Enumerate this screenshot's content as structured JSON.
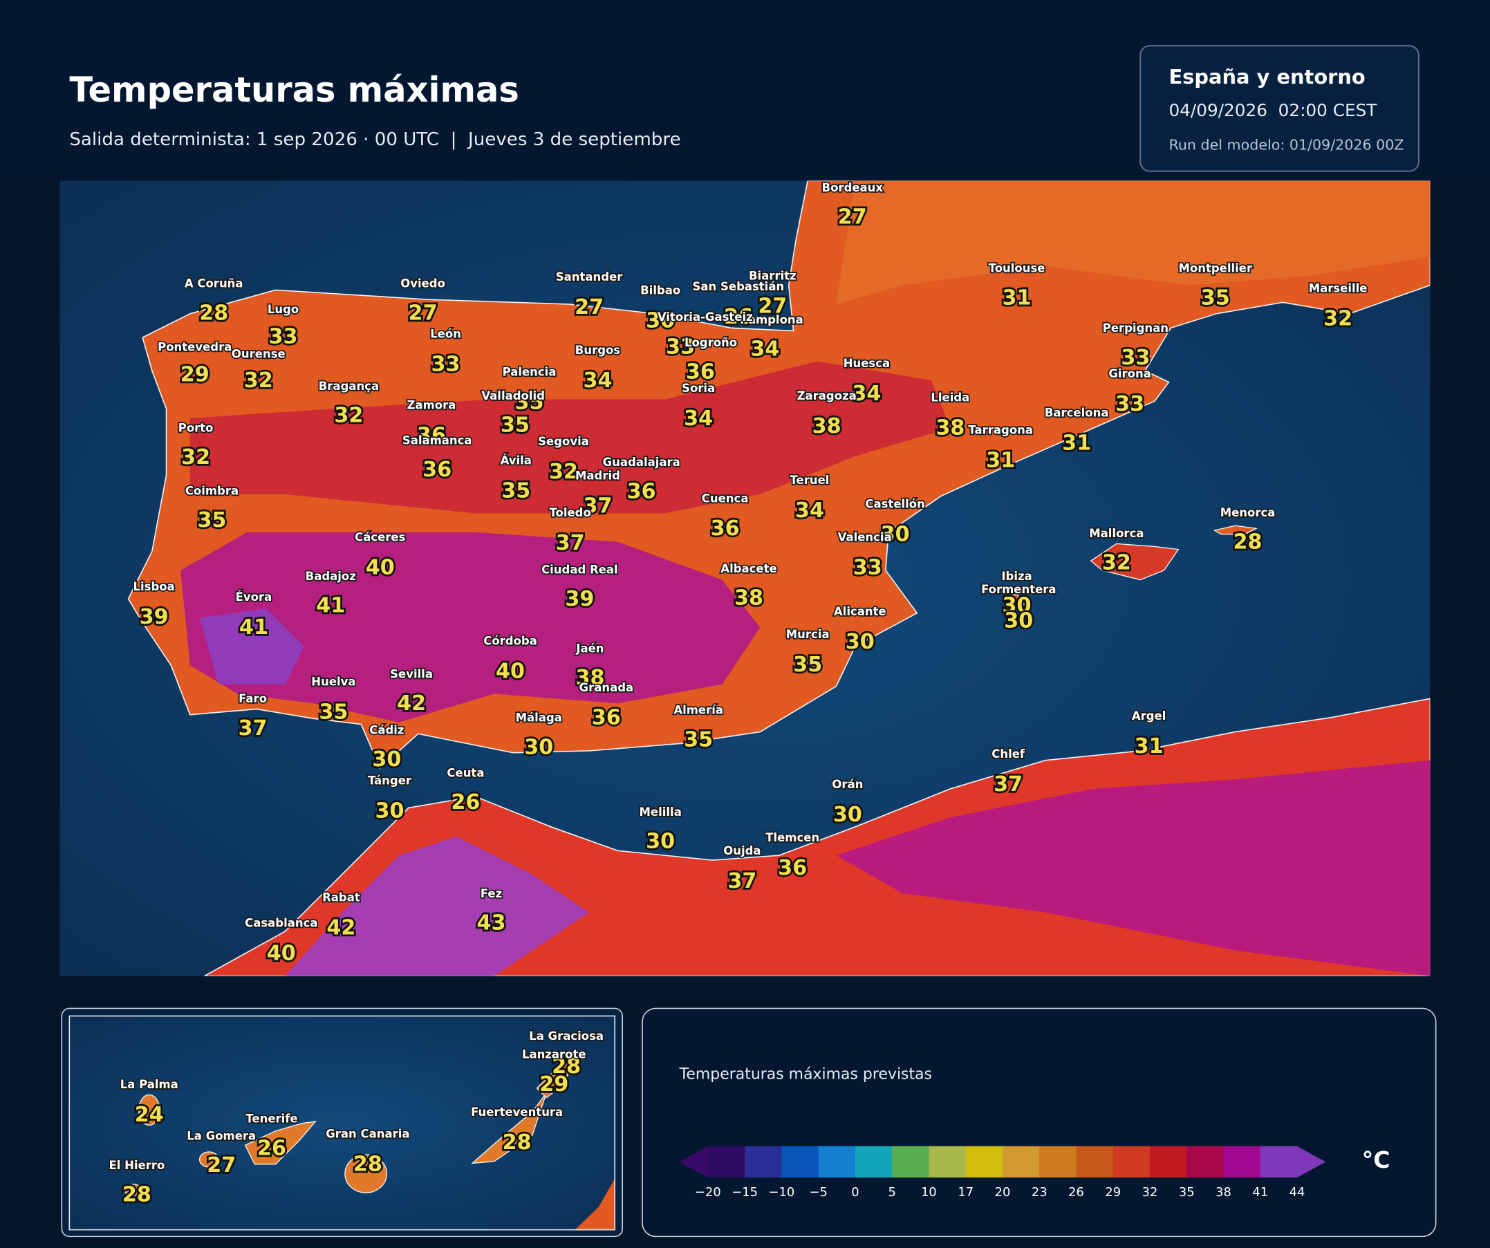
{
  "header": {
    "title": "Temperaturas máximas",
    "subtitle": "Salida determinista: 1 sep 2026 · 00 UTC  |  Jueves 3 de septiembre"
  },
  "info_box": {
    "region": "España y entorno",
    "valid_time": "04/09/2026  02:00 CEST",
    "model_run": "Run del modelo: 01/09/2026 00Z"
  },
  "map": {
    "cities": [
      {
        "name": "A Coruña",
        "value": 28
      },
      {
        "name": "Lugo",
        "value": 33
      },
      {
        "name": "Oviedo",
        "value": 27
      },
      {
        "name": "Santander",
        "value": 27
      },
      {
        "name": "Bilbao",
        "value": 30
      },
      {
        "name": "San Sebastián",
        "value": 26
      },
      {
        "name": "Biarritz",
        "value": 27
      },
      {
        "name": "Bordeaux",
        "value": 27
      },
      {
        "name": "Toulouse",
        "value": 31
      },
      {
        "name": "Montpellier",
        "value": 35
      },
      {
        "name": "Marseille",
        "value": 32
      },
      {
        "name": "Perpignan",
        "value": 33
      },
      {
        "name": "Girona",
        "value": 33
      },
      {
        "name": "Barcelona",
        "value": 31
      },
      {
        "name": "Tarragona",
        "value": 31
      },
      {
        "name": "Lleida",
        "value": 38
      },
      {
        "name": "Huesca",
        "value": 34
      },
      {
        "name": "Zaragoza",
        "value": 38
      },
      {
        "name": "Pamplona",
        "value": 34
      },
      {
        "name": "Vitoria-Gasteiz",
        "value": 33
      },
      {
        "name": "Logroño",
        "value": 36
      },
      {
        "name": "Soria",
        "value": 34
      },
      {
        "name": "Burgos",
        "value": 34
      },
      {
        "name": "Palencia",
        "value": 35
      },
      {
        "name": "León",
        "value": 33
      },
      {
        "name": "Ourense",
        "value": 32
      },
      {
        "name": "Pontevedra",
        "value": 29
      },
      {
        "name": "Bragança",
        "value": 32
      },
      {
        "name": "Zamora",
        "value": 36
      },
      {
        "name": "Valladolid",
        "value": 35
      },
      {
        "name": "Salamanca",
        "value": 36
      },
      {
        "name": "Segovia",
        "value": 32
      },
      {
        "name": "Ávila",
        "value": 35
      },
      {
        "name": "Guadalajara",
        "value": 36
      },
      {
        "name": "Madrid",
        "value": 37
      },
      {
        "name": "Porto",
        "value": 32
      },
      {
        "name": "Coimbra",
        "value": 35
      },
      {
        "name": "Toledo",
        "value": 37
      },
      {
        "name": "Cuenca",
        "value": 36
      },
      {
        "name": "Teruel",
        "value": 34
      },
      {
        "name": "Castellón",
        "value": 30
      },
      {
        "name": "Valencia",
        "value": 33
      },
      {
        "name": "Cáceres",
        "value": 40
      },
      {
        "name": "Badajoz",
        "value": 41
      },
      {
        "name": "Lisboa",
        "value": 39
      },
      {
        "name": "Évora",
        "value": 41
      },
      {
        "name": "Ciudad Real",
        "value": 39
      },
      {
        "name": "Albacete",
        "value": 38
      },
      {
        "name": "Ibiza",
        "value": 30
      },
      {
        "name": "Formentera",
        "value": 30
      },
      {
        "name": "Mallorca",
        "value": 32
      },
      {
        "name": "Menorca",
        "value": 28
      },
      {
        "name": "Alicante",
        "value": 30
      },
      {
        "name": "Murcia",
        "value": 35
      },
      {
        "name": "Córdoba",
        "value": 40
      },
      {
        "name": "Jaén",
        "value": 38
      },
      {
        "name": "Granada",
        "value": 36
      },
      {
        "name": "Sevilla",
        "value": 42
      },
      {
        "name": "Huelva",
        "value": 35
      },
      {
        "name": "Faro",
        "value": 37
      },
      {
        "name": "Cádiz",
        "value": 30
      },
      {
        "name": "Málaga",
        "value": 30
      },
      {
        "name": "Almería",
        "value": 35
      },
      {
        "name": "Tánger",
        "value": 30
      },
      {
        "name": "Ceuta",
        "value": 26
      },
      {
        "name": "Melilla",
        "value": 30
      },
      {
        "name": "Orán",
        "value": 30
      },
      {
        "name": "Chlef",
        "value": 37
      },
      {
        "name": "Argel",
        "value": 31
      },
      {
        "name": "Tlemcen",
        "value": 36
      },
      {
        "name": "Oujda",
        "value": 37
      },
      {
        "name": "Rabat",
        "value": 42
      },
      {
        "name": "Casablanca",
        "value": 40
      },
      {
        "name": "Fez",
        "value": 43
      }
    ]
  },
  "inset": {
    "islands": [
      {
        "name": "La Graciosa",
        "value": 28
      },
      {
        "name": "Lanzarote",
        "value": 29
      },
      {
        "name": "La Palma",
        "value": 24
      },
      {
        "name": "Tenerife",
        "value": 26
      },
      {
        "name": "La Gomera",
        "value": 27
      },
      {
        "name": "Gran Canaria",
        "value": 28
      },
      {
        "name": "Fuerteventura",
        "value": 28
      },
      {
        "name": "El Hierro",
        "value": 28
      }
    ]
  },
  "legend": {
    "title": "Temperaturas máximas previstas",
    "unit": "°C",
    "ticks": [
      "−20",
      "−15",
      "−10",
      "−5",
      "0",
      "5",
      "10",
      "17",
      "20",
      "23",
      "26",
      "29",
      "32",
      "35",
      "38",
      "41",
      "44"
    ],
    "colors": [
      "#300b62",
      "#2a2f96",
      "#0a55b8",
      "#1580d0",
      "#14a6b8",
      "#5aae52",
      "#a8b84a",
      "#d2bd0a",
      "#d29a30",
      "#d07a20",
      "#c85818",
      "#cf3a20",
      "#c01a22",
      "#a8084a",
      "#a00890",
      "#8038b8"
    ],
    "under_color": "#3a0a6a",
    "over_color": "#8038b8"
  }
}
